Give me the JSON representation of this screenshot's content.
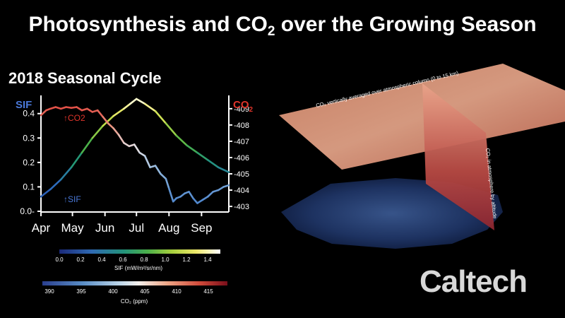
{
  "header": {
    "title_prefix": "Photosynthesis and CO",
    "title_sub": "2",
    "title_suffix": " over the Growing Season"
  },
  "chart": {
    "subtitle": "2018 Seasonal Cycle",
    "left_axis_label": "SIF",
    "right_axis_label_main": "CO",
    "right_axis_label_sub": "2",
    "co2_curve_label": "↑CO2",
    "sif_curve_label": "↑SIF"
  },
  "colorbars": {
    "sif": {
      "ticks": [
        "0.0",
        "0.2",
        "0.4",
        "0.6",
        "0.8",
        "1.0",
        "1.2",
        "1.4"
      ],
      "label": "SIF (mW/m²/sr/nm)"
    },
    "co2": {
      "ticks": [
        "390",
        "395",
        "400",
        "405",
        "410",
        "415"
      ],
      "label": "CO₂ (ppm)"
    }
  },
  "map3d": {
    "top_plane_label": "CO₂ vertically averaged over atmospheric column (0 to 15 km)",
    "side_plane_label": "CO₂ in atmosphere by altitude"
  },
  "logo": {
    "text": "Caltech"
  },
  "colors": {
    "sif_axis": "#4a78d8",
    "co2_axis": "#e0352b",
    "background": "#000000"
  },
  "chart_data": {
    "type": "line",
    "title": "2018 Seasonal Cycle",
    "x_tick_labels": [
      "Apr",
      "May",
      "Jun",
      "Jul",
      "Aug",
      "Sep"
    ],
    "x_tick_days": [
      91,
      121,
      152,
      182,
      213,
      244
    ],
    "xlim_days": [
      91,
      270
    ],
    "left_axis": {
      "label": "SIF",
      "ylim": [
        0.0,
        0.46
      ],
      "ticks": [
        0.0,
        0.1,
        0.2,
        0.3,
        0.4
      ]
    },
    "right_axis": {
      "label": "CO2",
      "ylim": [
        402.7,
        409.6
      ],
      "ticks": [
        403,
        404,
        405,
        406,
        407,
        408,
        409
      ]
    },
    "series": [
      {
        "name": "SIF",
        "axis": "left",
        "x": [
          91,
          100,
          110,
          120,
          130,
          140,
          150,
          160,
          170,
          176,
          182,
          190,
          200,
          210,
          220,
          230,
          240,
          250,
          260,
          270
        ],
        "y": [
          0.06,
          0.09,
          0.13,
          0.18,
          0.24,
          0.3,
          0.35,
          0.39,
          0.42,
          0.44,
          0.46,
          0.44,
          0.41,
          0.36,
          0.31,
          0.27,
          0.24,
          0.21,
          0.18,
          0.16
        ]
      },
      {
        "name": "CO2",
        "axis": "right",
        "x": [
          91,
          96,
          100,
          105,
          110,
          115,
          120,
          125,
          130,
          135,
          140,
          145,
          150,
          155,
          160,
          165,
          170,
          175,
          180,
          185,
          190,
          195,
          200,
          205,
          210,
          213,
          217,
          220,
          224,
          228,
          232,
          236,
          240,
          245,
          250,
          255,
          260,
          265,
          270
        ],
        "y": [
          408.6,
          408.9,
          409.0,
          409.1,
          409.0,
          409.1,
          409.05,
          409.1,
          408.9,
          409.0,
          408.8,
          408.9,
          408.5,
          408.1,
          407.8,
          407.4,
          406.9,
          406.7,
          406.8,
          406.3,
          406.1,
          405.4,
          405.5,
          405.0,
          404.7,
          404.1,
          403.3,
          403.5,
          403.6,
          403.8,
          403.9,
          403.5,
          403.2,
          403.4,
          403.6,
          403.9,
          404.0,
          404.2,
          404.3
        ]
      }
    ]
  }
}
